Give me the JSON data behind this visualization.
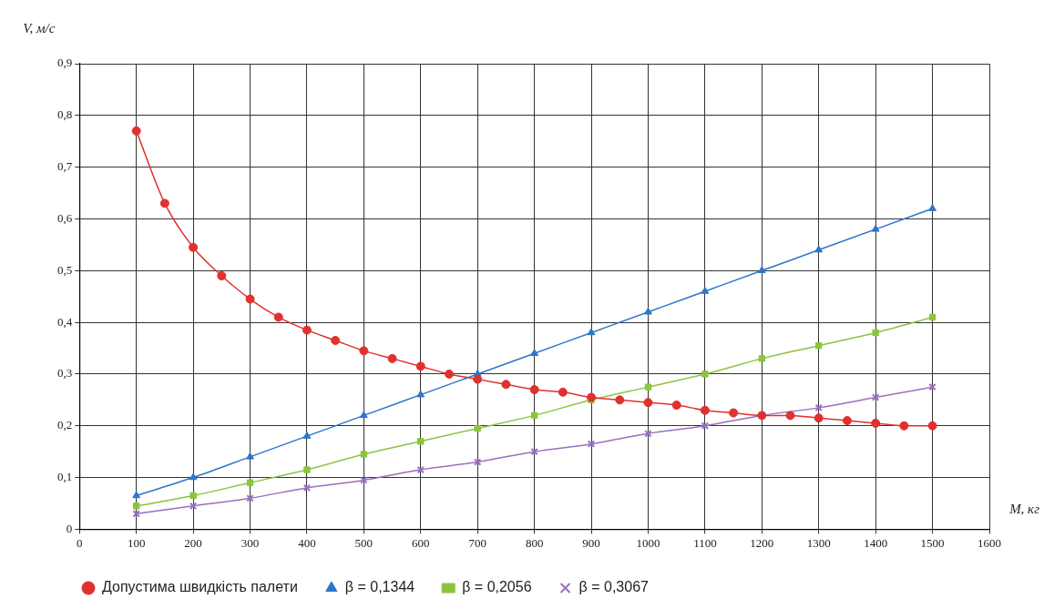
{
  "chart_data": {
    "type": "line",
    "xlabel": "M, кг",
    "ylabel": "V, м/с",
    "xlim": [
      0,
      1600
    ],
    "xticks": [
      0,
      100,
      200,
      300,
      400,
      500,
      600,
      700,
      800,
      900,
      1000,
      1100,
      1200,
      1300,
      1400,
      1500,
      1600
    ],
    "ylim": [
      0,
      0.9
    ],
    "yticks": [
      {
        "value": 0,
        "label": "0"
      },
      {
        "value": 0.1,
        "label": "0,1"
      },
      {
        "value": 0.2,
        "label": "0,2"
      },
      {
        "value": 0.3,
        "label": "0,3"
      },
      {
        "value": 0.4,
        "label": "0,4"
      },
      {
        "value": 0.5,
        "label": "0,5"
      },
      {
        "value": 0.6,
        "label": "0,6"
      },
      {
        "value": 0.7,
        "label": "0,7"
      },
      {
        "value": 0.8,
        "label": "0,8"
      },
      {
        "value": 0.9,
        "label": "0,9"
      }
    ],
    "grid": true,
    "legend": "bottom",
    "line_style": "solid",
    "series": [
      {
        "name": "Допустима швидкість палети",
        "color": "#e0312f",
        "marker": "circle",
        "x": [
          100,
          150,
          200,
          250,
          300,
          350,
          400,
          450,
          500,
          550,
          600,
          650,
          700,
          750,
          800,
          850,
          900,
          950,
          1000,
          1050,
          1100,
          1150,
          1200,
          1250,
          1300,
          1350,
          1400,
          1450,
          1500
        ],
        "values": [
          0.77,
          0.63,
          0.545,
          0.49,
          0.445,
          0.41,
          0.385,
          0.365,
          0.345,
          0.33,
          0.315,
          0.3,
          0.29,
          0.28,
          0.27,
          0.265,
          0.255,
          0.25,
          0.245,
          0.24,
          0.23,
          0.225,
          0.22,
          0.22,
          0.215,
          0.21,
          0.205,
          0.2,
          0.2
        ]
      },
      {
        "name": "β = 0,1344",
        "color": "#2e75c8",
        "marker": "triangle",
        "x": [
          100,
          200,
          300,
          400,
          500,
          600,
          700,
          800,
          900,
          1000,
          1100,
          1200,
          1300,
          1400,
          1500
        ],
        "values": [
          0.065,
          0.1,
          0.14,
          0.18,
          0.22,
          0.26,
          0.3,
          0.34,
          0.38,
          0.42,
          0.46,
          0.5,
          0.54,
          0.58,
          0.62
        ]
      },
      {
        "name": "β = 0,2056",
        "color": "#8cc43c",
        "marker": "square",
        "x": [
          100,
          200,
          300,
          400,
          500,
          600,
          700,
          800,
          900,
          1000,
          1100,
          1200,
          1300,
          1400,
          1500
        ],
        "values": [
          0.045,
          0.065,
          0.09,
          0.115,
          0.145,
          0.17,
          0.195,
          0.22,
          0.25,
          0.275,
          0.3,
          0.33,
          0.355,
          0.38,
          0.41
        ]
      },
      {
        "name": "β = 0,3067",
        "color": "#9a6fc0",
        "marker": "cross",
        "x": [
          100,
          200,
          300,
          400,
          500,
          600,
          700,
          800,
          900,
          1000,
          1100,
          1200,
          1300,
          1400,
          1500
        ],
        "values": [
          0.03,
          0.045,
          0.06,
          0.08,
          0.095,
          0.115,
          0.13,
          0.15,
          0.165,
          0.185,
          0.2,
          0.22,
          0.235,
          0.255,
          0.275
        ]
      }
    ]
  }
}
